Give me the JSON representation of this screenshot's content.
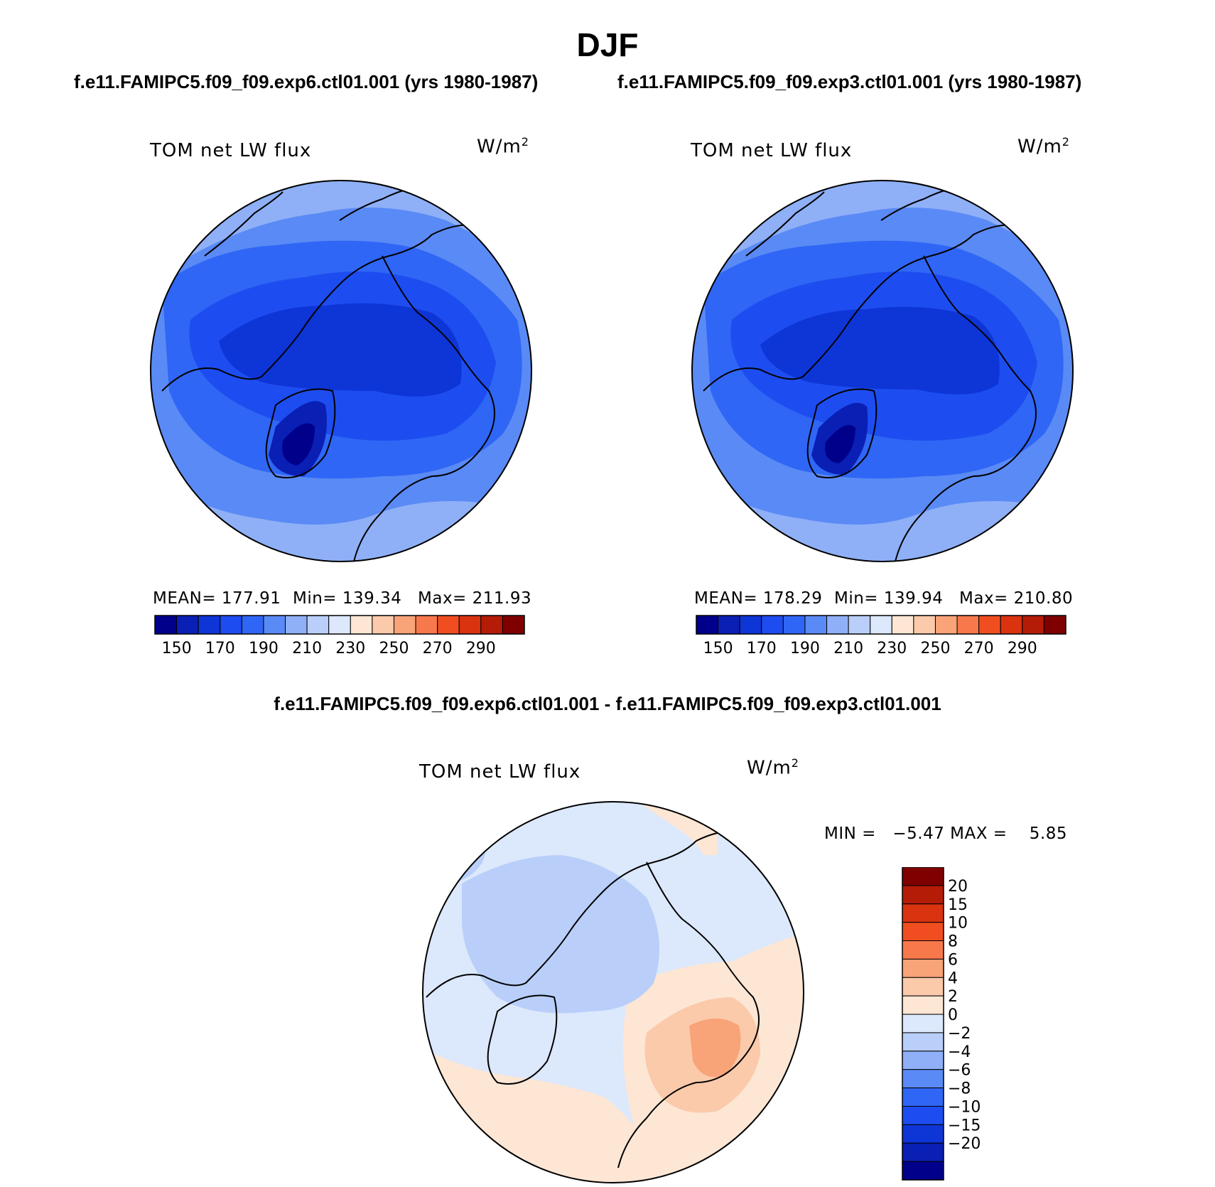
{
  "figure": {
    "title": "DJF",
    "diff_title": "f.e11.FAMIPC5.f09_f09.exp6.ctl01.001 - f.e11.FAMIPC5.f09_f09.exp3.ctl01.001"
  },
  "panels": [
    {
      "case_title": "f.e11.FAMIPC5.f09_f09.exp6.ctl01.001 (yrs 1980-1987)",
      "variable": "TOM net LW flux",
      "units": "W/m",
      "units_sup": "2",
      "mean_text": "MEAN= 177.91",
      "min_text": "Min= 139.34",
      "max_text": "Max= 211.93"
    },
    {
      "case_title": "f.e11.FAMIPC5.f09_f09.exp3.ctl01.001 (yrs 1980-1987)",
      "variable": "TOM net LW flux",
      "units": "W/m",
      "units_sup": "2",
      "mean_text": "MEAN= 178.29",
      "min_text": "Min= 139.94",
      "max_text": "Max= 210.80"
    },
    {
      "variable": "TOM net LW flux",
      "units": "W/m",
      "units_sup": "2",
      "minmax_text": "MIN =   −5.47 MAX =    5.85"
    }
  ],
  "chart_data": [
    {
      "type": "heatmap",
      "projection": "north polar stereographic",
      "title": "TOM net LW flux",
      "units": "W/m2",
      "stats": {
        "mean": 177.91,
        "min": 139.34,
        "max": 211.93
      },
      "colorbar": {
        "orientation": "horizontal",
        "boundaries": [
          140,
          150,
          160,
          170,
          180,
          190,
          200,
          210,
          220,
          230,
          240,
          250,
          260,
          270,
          280,
          290,
          300
        ],
        "tick_labels": [
          "150",
          "170",
          "190",
          "210",
          "230",
          "250",
          "270",
          "290"
        ],
        "colors": [
          "#00008b",
          "#0a1fb4",
          "#0e35d6",
          "#1d4df0",
          "#2f66f5",
          "#5a8af5",
          "#8fb0f7",
          "#b9cffa",
          "#dce8fb",
          "#fde6d4",
          "#fbcaaa",
          "#f8a378",
          "#f7794b",
          "#f04e20",
          "#d93310",
          "#b41c08",
          "#800000"
        ]
      },
      "values_w_m2": {
        "central_arctic": 165,
        "greenland": 147,
        "north_atlantic": 205,
        "north_pacific": 200,
        "canadian_archipelago": 160,
        "siberia": 163
      }
    },
    {
      "type": "heatmap",
      "projection": "north polar stereographic",
      "title": "TOM net LW flux",
      "units": "W/m2",
      "stats": {
        "mean": 178.29,
        "min": 139.94,
        "max": 210.8
      },
      "colorbar": {
        "orientation": "horizontal",
        "boundaries": [
          140,
          150,
          160,
          170,
          180,
          190,
          200,
          210,
          220,
          230,
          240,
          250,
          260,
          270,
          280,
          290,
          300
        ],
        "tick_labels": [
          "150",
          "170",
          "190",
          "210",
          "230",
          "250",
          "270",
          "290"
        ],
        "colors": [
          "#00008b",
          "#0a1fb4",
          "#0e35d6",
          "#1d4df0",
          "#2f66f5",
          "#5a8af5",
          "#8fb0f7",
          "#b9cffa",
          "#dce8fb",
          "#fde6d4",
          "#fbcaaa",
          "#f8a378",
          "#f7794b",
          "#f04e20",
          "#d93310",
          "#b41c08",
          "#800000"
        ]
      },
      "values_w_m2": {
        "central_arctic": 166,
        "greenland": 148,
        "north_atlantic": 205,
        "north_pacific": 200,
        "canadian_archipelago": 160,
        "siberia": 164
      }
    },
    {
      "type": "heatmap",
      "projection": "north polar stereographic",
      "title": "TOM net LW flux",
      "units": "W/m2",
      "stats": {
        "min": -5.47,
        "max": 5.85
      },
      "colorbar": {
        "orientation": "vertical",
        "boundaries": [
          -25,
          -20,
          -15,
          -10,
          -8,
          -6,
          -4,
          -2,
          0,
          2,
          4,
          6,
          8,
          10,
          15,
          20,
          25
        ],
        "tick_labels": [
          "20",
          "15",
          "10",
          "8",
          "6",
          "4",
          "2",
          "0",
          "−2",
          "−4",
          "−6",
          "−8",
          "−10",
          "−15",
          "−20"
        ],
        "colors": [
          "#800000",
          "#b41c08",
          "#d93310",
          "#f04e20",
          "#f7794b",
          "#f8a378",
          "#fbcaaa",
          "#fde6d4",
          "#dce8fb",
          "#b9cffa",
          "#8fb0f7",
          "#5a8af5",
          "#2f66f5",
          "#1d4df0",
          "#0e35d6",
          "#0a1fb4",
          "#00008b"
        ]
      },
      "values_w_m2": {
        "central_arctic": -3,
        "barents_kara": 3,
        "siberia": 1,
        "north_america": -1,
        "north_atlantic": 1,
        "north_pacific": -1
      }
    }
  ]
}
